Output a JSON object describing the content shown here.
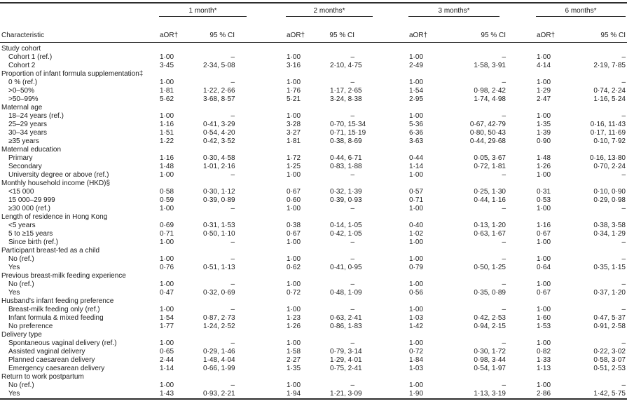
{
  "table": {
    "characteristic_header": "Characteristic",
    "time_groups": [
      "1 month*",
      "2 months*",
      "3 months*",
      "6 months*"
    ],
    "aor_header": "aOR†",
    "ci_header": "95 % CI",
    "null_ci": "–",
    "rows": [
      {
        "type": "group",
        "label": "Study cohort"
      },
      {
        "type": "item",
        "label": "Cohort 1 (ref.)",
        "values": [
          "1·00",
          "–",
          "1·00",
          "–",
          "1·00",
          "–",
          "1·00",
          "–"
        ]
      },
      {
        "type": "item",
        "label": "Cohort 2",
        "values": [
          "3·45",
          "2·34, 5·08",
          "3·16",
          "2·10, 4·75",
          "2·49",
          "1·58, 3·91",
          "4·14",
          "2·19, 7·85"
        ]
      },
      {
        "type": "group",
        "label": "Proportion of infant formula supplementation‡"
      },
      {
        "type": "item",
        "label": "0 % (ref.)",
        "values": [
          "1·00",
          "–",
          "1·00",
          "–",
          "1·00",
          "–",
          "1·00",
          "–"
        ]
      },
      {
        "type": "item",
        "label": ">0–50%",
        "values": [
          "1·81",
          "1·22, 2·66",
          "1·76",
          "1·17, 2·65",
          "1·54",
          "0·98, 2·42",
          "1·29",
          "0·74, 2·24"
        ]
      },
      {
        "type": "item",
        "label": ">50–99%",
        "values": [
          "5·62",
          "3·68, 8·57",
          "5·21",
          "3·24, 8·38",
          "2·95",
          "1·74, 4·98",
          "2·47",
          "1·16, 5·24"
        ]
      },
      {
        "type": "group",
        "label": "Maternal age"
      },
      {
        "type": "item",
        "label": "18–24 years (ref.)",
        "values": [
          "1·00",
          "–",
          "1·00",
          "–",
          "1·00",
          "–",
          "1·00",
          "–"
        ]
      },
      {
        "type": "item",
        "label": "25–29 years",
        "values": [
          "1·16",
          "0·41, 3·29",
          "3·28",
          "0·70, 15·34",
          "5·36",
          "0·67, 42·79",
          "1·35",
          "0·16, 11·43"
        ]
      },
      {
        "type": "item",
        "label": "30–34 years",
        "values": [
          "1·51",
          "0·54, 4·20",
          "3·27",
          "0·71, 15·19",
          "6·36",
          "0·80, 50·43",
          "1·39",
          "0·17, 11·69"
        ]
      },
      {
        "type": "item",
        "label": "≥35 years",
        "values": [
          "1·22",
          "0·42, 3·52",
          "1·81",
          "0·38, 8·69",
          "3·63",
          "0·44, 29·68",
          "0·90",
          "0·10, 7·92"
        ]
      },
      {
        "type": "group",
        "label": "Maternal education"
      },
      {
        "type": "item",
        "label": "Primary",
        "values": [
          "1·16",
          "0·30, 4·58",
          "1·72",
          "0·44, 6·71",
          "0·44",
          "0·05, 3·67",
          "1·48",
          "0·16, 13·80"
        ]
      },
      {
        "type": "item",
        "label": "Secondary",
        "values": [
          "1·48",
          "1·01, 2·16",
          "1·25",
          "0·83, 1·88",
          "1·14",
          "0·72, 1·81",
          "1·26",
          "0·70, 2·24"
        ]
      },
      {
        "type": "item",
        "label": "University degree or above (ref.)",
        "values": [
          "1·00",
          "–",
          "1·00",
          "–",
          "1·00",
          "–",
          "1·00",
          "–"
        ]
      },
      {
        "type": "group",
        "label": "Monthly household income (HKD)§"
      },
      {
        "type": "item",
        "label": "<15 000",
        "values": [
          "0·58",
          "0·30, 1·12",
          "0·67",
          "0·32, 1·39",
          "0·57",
          "0·25, 1·30",
          "0·31",
          "0·10, 0·90"
        ]
      },
      {
        "type": "item",
        "label": "15 000–29 999",
        "values": [
          "0·59",
          "0·39, 0·89",
          "0·60",
          "0·39, 0·93",
          "0·71",
          "0·44, 1·16",
          "0·53",
          "0·29, 0·98"
        ]
      },
      {
        "type": "item",
        "label": "≥30 000 (ref.)",
        "values": [
          "1·00",
          "–",
          "1·00",
          "–",
          "1·00",
          "–",
          "1·00",
          "–"
        ]
      },
      {
        "type": "group",
        "label": "Length of residence in Hong Kong"
      },
      {
        "type": "item",
        "label": "<5 years",
        "values": [
          "0·69",
          "0·31, 1·53",
          "0·38",
          "0·14, 1·05",
          "0·40",
          "0·13, 1·20",
          "1·16",
          "0·38, 3·58"
        ]
      },
      {
        "type": "item",
        "label": "5 to ≥15 years",
        "values": [
          "0·71",
          "0·50, 1·10",
          "0·67",
          "0·42, 1·05",
          "1·02",
          "0·63, 1·67",
          "0·67",
          "0·34, 1·29"
        ]
      },
      {
        "type": "item",
        "label": "Since birth (ref.)",
        "values": [
          "1·00",
          "–",
          "1·00",
          "–",
          "1·00",
          "–",
          "1·00",
          "–"
        ]
      },
      {
        "type": "group",
        "label": "Participant breast-fed as a child"
      },
      {
        "type": "item",
        "label": "No (ref.)",
        "values": [
          "1·00",
          "–",
          "1·00",
          "–",
          "1·00",
          "–",
          "1·00",
          "–"
        ]
      },
      {
        "type": "item",
        "label": "Yes",
        "values": [
          "0·76",
          "0·51, 1·13",
          "0·62",
          "0·41, 0·95",
          "0·79",
          "0·50, 1·25",
          "0·64",
          "0·35, 1·15"
        ]
      },
      {
        "type": "group",
        "label": "Previous breast-milk feeding experience"
      },
      {
        "type": "item",
        "label": "No (ref.)",
        "values": [
          "1·00",
          "–",
          "1·00",
          "–",
          "1·00",
          "–",
          "1·00",
          "–"
        ]
      },
      {
        "type": "item",
        "label": "Yes",
        "values": [
          "0·47",
          "0·32, 0·69",
          "0·72",
          "0·48, 1·09",
          "0·56",
          "0·35, 0·89",
          "0·67",
          "0·37, 1·20"
        ]
      },
      {
        "type": "group",
        "label": "Husband's infant feeding preference"
      },
      {
        "type": "item",
        "label": "Breast-milk feeding only (ref.)",
        "values": [
          "1·00",
          "–",
          "1·00",
          "–",
          "1·00",
          "–",
          "1·00",
          "–"
        ]
      },
      {
        "type": "item",
        "label": "Infant formula & mixed feeding",
        "values": [
          "1·54",
          "0·87, 2·73",
          "1·23",
          "0·63, 2·41",
          "1·03",
          "0·42, 2·53",
          "1·60",
          "0·47, 5·37"
        ]
      },
      {
        "type": "item",
        "label": "No preference",
        "values": [
          "1·77",
          "1·24, 2·52",
          "1·26",
          "0·86, 1·83",
          "1·42",
          "0·94, 2·15",
          "1·53",
          "0·91, 2·58"
        ]
      },
      {
        "type": "group",
        "label": "Delivery type"
      },
      {
        "type": "item",
        "label": "Spontaneous vaginal delivery (ref.)",
        "values": [
          "1·00",
          "–",
          "1·00",
          "–",
          "1·00",
          "–",
          "1·00",
          "–"
        ]
      },
      {
        "type": "item",
        "label": "Assisted vaginal delivery",
        "values": [
          "0·65",
          "0·29, 1·46",
          "1·58",
          "0·79, 3·14",
          "0·72",
          "0·30, 1·72",
          "0·82",
          "0·22, 3·02"
        ]
      },
      {
        "type": "item",
        "label": "Planned caesarean delivery",
        "values": [
          "2·44",
          "1·48, 4·04",
          "2·27",
          "1·29, 4·01",
          "1·84",
          "0·98, 3·44",
          "1·33",
          "0·58, 3·07"
        ]
      },
      {
        "type": "item",
        "label": "Emergency caesarean delivery",
        "values": [
          "1·14",
          "0·66, 1·99",
          "1·35",
          "0·75, 2·41",
          "1·03",
          "0·54, 1·97",
          "1·13",
          "0·51, 2·53"
        ]
      },
      {
        "type": "group",
        "label": "Return to work postpartum"
      },
      {
        "type": "item",
        "label": "No (ref.)",
        "values": [
          "1·00",
          "–",
          "1·00",
          "–",
          "1·00",
          "–",
          "1·00",
          "–"
        ]
      },
      {
        "type": "item",
        "label": "Yes",
        "values": [
          "1·43",
          "0·93, 2·21",
          "1·94",
          "1·21, 3·09",
          "1·90",
          "1·13, 3·19",
          "2·86",
          "1·42, 5·75"
        ]
      }
    ]
  }
}
